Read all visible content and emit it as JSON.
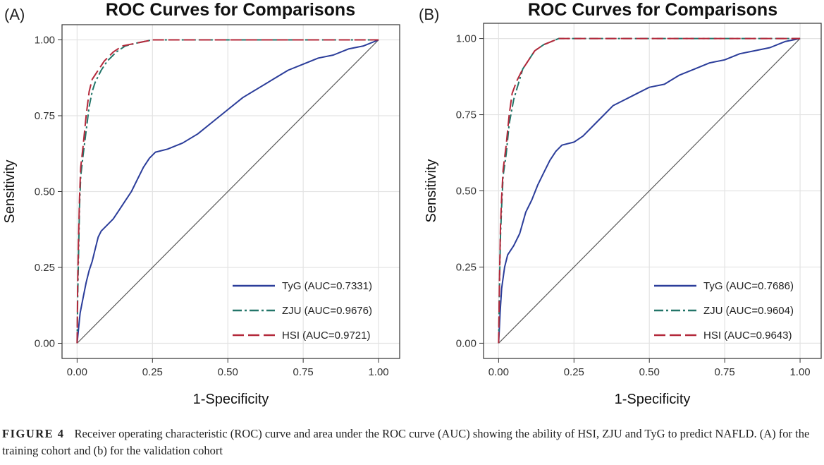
{
  "figure": {
    "label": "FIGURE 4",
    "caption": "Receiver operating characteristic (ROC) curve and area under the ROC curve (AUC) showing the ability of HSI, ZJU and TyG to predict NAFLD. (A) for the training cohort and (b) for the validation cohort"
  },
  "colors": {
    "tyg": "#2b3d9a",
    "zju": "#237569",
    "hsi": "#b3283a",
    "diagonal": "#5a5a5a",
    "grid": "#e3e3e3"
  },
  "chart_data": [
    {
      "type": "line",
      "panel": "(A)",
      "title": "ROC Curves for Comparisons",
      "xlabel": "1-Specificity",
      "ylabel": "Sensitivity",
      "xlim": [
        -0.05,
        1.07
      ],
      "ylim": [
        -0.05,
        1.05
      ],
      "xticks": [
        "0.00",
        "0.25",
        "0.50",
        "0.75",
        "1.00"
      ],
      "yticks": [
        "0.00",
        "0.25",
        "0.50",
        "0.75",
        "1.00"
      ],
      "legend_position": "bottom-right",
      "reference_line": [
        [
          0,
          0
        ],
        [
          1,
          1
        ]
      ],
      "series": [
        {
          "name": "TyG (AUC=0.7331)",
          "style": "solid",
          "points": [
            [
              0,
              0
            ],
            [
              0.005,
              0.05
            ],
            [
              0.01,
              0.1
            ],
            [
              0.02,
              0.15
            ],
            [
              0.03,
              0.2
            ],
            [
              0.04,
              0.24
            ],
            [
              0.05,
              0.27
            ],
            [
              0.06,
              0.31
            ],
            [
              0.07,
              0.35
            ],
            [
              0.08,
              0.37
            ],
            [
              0.1,
              0.39
            ],
            [
              0.12,
              0.41
            ],
            [
              0.14,
              0.44
            ],
            [
              0.16,
              0.47
            ],
            [
              0.18,
              0.5
            ],
            [
              0.2,
              0.54
            ],
            [
              0.22,
              0.58
            ],
            [
              0.24,
              0.61
            ],
            [
              0.26,
              0.63
            ],
            [
              0.3,
              0.64
            ],
            [
              0.35,
              0.66
            ],
            [
              0.4,
              0.69
            ],
            [
              0.45,
              0.73
            ],
            [
              0.5,
              0.77
            ],
            [
              0.55,
              0.81
            ],
            [
              0.6,
              0.84
            ],
            [
              0.65,
              0.87
            ],
            [
              0.7,
              0.9
            ],
            [
              0.75,
              0.92
            ],
            [
              0.8,
              0.94
            ],
            [
              0.85,
              0.95
            ],
            [
              0.9,
              0.97
            ],
            [
              0.95,
              0.98
            ],
            [
              1,
              1
            ]
          ]
        },
        {
          "name": "ZJU (AUC=0.9676)",
          "style": "dashdot",
          "points": [
            [
              0,
              0
            ],
            [
              0.002,
              0.15
            ],
            [
              0.005,
              0.3
            ],
            [
              0.008,
              0.45
            ],
            [
              0.012,
              0.55
            ],
            [
              0.02,
              0.62
            ],
            [
              0.03,
              0.7
            ],
            [
              0.04,
              0.78
            ],
            [
              0.05,
              0.83
            ],
            [
              0.06,
              0.86
            ],
            [
              0.08,
              0.9
            ],
            [
              0.1,
              0.93
            ],
            [
              0.13,
              0.96
            ],
            [
              0.16,
              0.98
            ],
            [
              0.2,
              0.99
            ],
            [
              0.25,
              1
            ],
            [
              1,
              1
            ]
          ]
        },
        {
          "name": "HSI (AUC=0.9721)",
          "style": "dash",
          "points": [
            [
              0,
              0
            ],
            [
              0.002,
              0.2
            ],
            [
              0.005,
              0.35
            ],
            [
              0.008,
              0.48
            ],
            [
              0.012,
              0.58
            ],
            [
              0.02,
              0.65
            ],
            [
              0.03,
              0.75
            ],
            [
              0.04,
              0.83
            ],
            [
              0.05,
              0.87
            ],
            [
              0.07,
              0.9
            ],
            [
              0.09,
              0.93
            ],
            [
              0.12,
              0.96
            ],
            [
              0.15,
              0.98
            ],
            [
              0.2,
              0.99
            ],
            [
              0.25,
              1
            ],
            [
              1,
              1
            ]
          ]
        }
      ]
    },
    {
      "type": "line",
      "panel": "(B)",
      "title": "ROC Curves for Comparisons",
      "xlabel": "1-Specificity",
      "ylabel": "Sensitivity",
      "xlim": [
        -0.05,
        1.07
      ],
      "ylim": [
        -0.05,
        1.05
      ],
      "xticks": [
        "0.00",
        "0.25",
        "0.50",
        "0.75",
        "1.00"
      ],
      "yticks": [
        "0.00",
        "0.25",
        "0.50",
        "0.75",
        "1.00"
      ],
      "legend_position": "bottom-right",
      "reference_line": [
        [
          0,
          0
        ],
        [
          1,
          1
        ]
      ],
      "series": [
        {
          "name": "TyG (AUC=0.7686)",
          "style": "solid",
          "points": [
            [
              0,
              0
            ],
            [
              0.005,
              0.1
            ],
            [
              0.01,
              0.18
            ],
            [
              0.02,
              0.25
            ],
            [
              0.03,
              0.29
            ],
            [
              0.05,
              0.32
            ],
            [
              0.07,
              0.36
            ],
            [
              0.09,
              0.43
            ],
            [
              0.11,
              0.47
            ],
            [
              0.13,
              0.52
            ],
            [
              0.15,
              0.56
            ],
            [
              0.17,
              0.6
            ],
            [
              0.19,
              0.63
            ],
            [
              0.21,
              0.65
            ],
            [
              0.25,
              0.66
            ],
            [
              0.28,
              0.68
            ],
            [
              0.32,
              0.72
            ],
            [
              0.35,
              0.75
            ],
            [
              0.38,
              0.78
            ],
            [
              0.42,
              0.8
            ],
            [
              0.46,
              0.82
            ],
            [
              0.5,
              0.84
            ],
            [
              0.55,
              0.85
            ],
            [
              0.6,
              0.88
            ],
            [
              0.65,
              0.9
            ],
            [
              0.7,
              0.92
            ],
            [
              0.75,
              0.93
            ],
            [
              0.8,
              0.95
            ],
            [
              0.85,
              0.96
            ],
            [
              0.9,
              0.97
            ],
            [
              0.95,
              0.99
            ],
            [
              1,
              1
            ]
          ]
        },
        {
          "name": "ZJU (AUC=0.9604)",
          "style": "dashdot",
          "points": [
            [
              0,
              0
            ],
            [
              0.003,
              0.2
            ],
            [
              0.006,
              0.35
            ],
            [
              0.01,
              0.45
            ],
            [
              0.015,
              0.55
            ],
            [
              0.025,
              0.62
            ],
            [
              0.035,
              0.72
            ],
            [
              0.05,
              0.8
            ],
            [
              0.065,
              0.85
            ],
            [
              0.08,
              0.9
            ],
            [
              0.1,
              0.93
            ],
            [
              0.12,
              0.96
            ],
            [
              0.15,
              0.98
            ],
            [
              0.2,
              1
            ],
            [
              1,
              1
            ]
          ]
        },
        {
          "name": "HSI (AUC=0.9643)",
          "style": "dash",
          "points": [
            [
              0,
              0
            ],
            [
              0.003,
              0.22
            ],
            [
              0.006,
              0.38
            ],
            [
              0.01,
              0.48
            ],
            [
              0.015,
              0.57
            ],
            [
              0.025,
              0.65
            ],
            [
              0.035,
              0.75
            ],
            [
              0.045,
              0.82
            ],
            [
              0.06,
              0.86
            ],
            [
              0.08,
              0.9
            ],
            [
              0.1,
              0.93
            ],
            [
              0.12,
              0.96
            ],
            [
              0.15,
              0.98
            ],
            [
              0.2,
              1
            ],
            [
              1,
              1
            ]
          ]
        }
      ]
    }
  ]
}
